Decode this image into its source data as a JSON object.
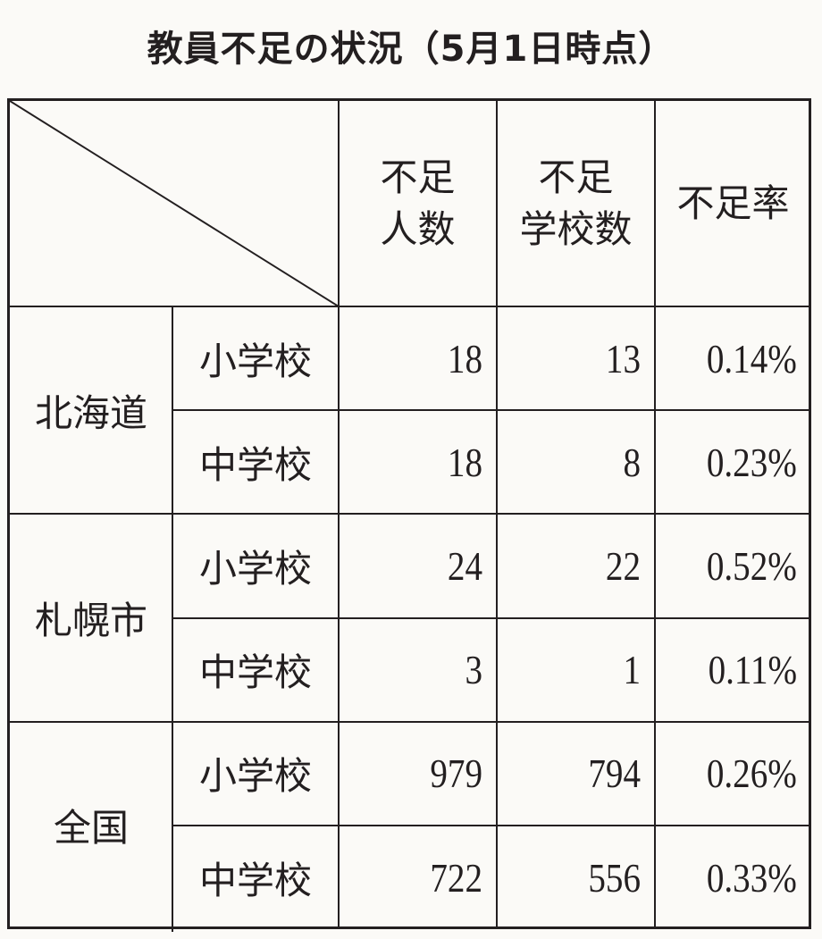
{
  "title": "教員不足の状況（5月1日時点）",
  "table": {
    "headers": [
      "不足\n人数",
      "不足\n学校数",
      "不足率"
    ],
    "header_lines": [
      [
        "不足",
        "人数"
      ],
      [
        "不足",
        "学校数"
      ],
      [
        "不足率"
      ]
    ],
    "groups": [
      {
        "region": "北海道",
        "rows": [
          {
            "level": "小学校",
            "shortage_people": "18",
            "shortage_schools": "13",
            "shortage_rate": "0.14%"
          },
          {
            "level": "中学校",
            "shortage_people": "18",
            "shortage_schools": "8",
            "shortage_rate": "0.23%"
          }
        ]
      },
      {
        "region": "札幌市",
        "rows": [
          {
            "level": "小学校",
            "shortage_people": "24",
            "shortage_schools": "22",
            "shortage_rate": "0.52%"
          },
          {
            "level": "中学校",
            "shortage_people": "3",
            "shortage_schools": "1",
            "shortage_rate": "0.11%"
          }
        ]
      },
      {
        "region": "全国",
        "rows": [
          {
            "level": "小学校",
            "shortage_people": "979",
            "shortage_schools": "794",
            "shortage_rate": "0.26%"
          },
          {
            "level": "中学校",
            "shortage_people": "722",
            "shortage_schools": "556",
            "shortage_rate": "0.33%"
          }
        ]
      }
    ]
  }
}
